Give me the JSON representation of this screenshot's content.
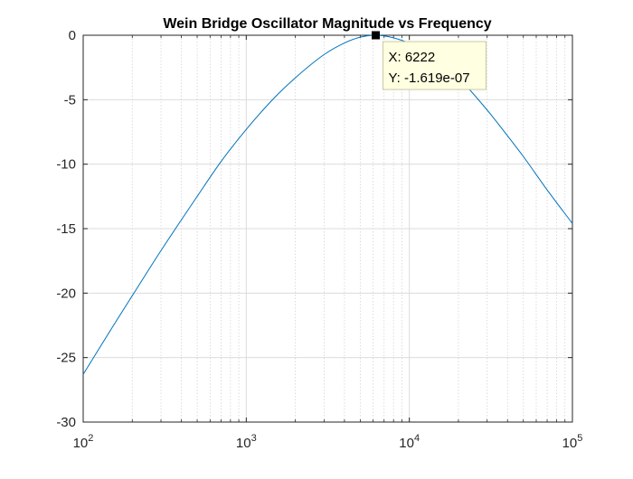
{
  "chart_data": {
    "type": "line",
    "title": "Wein Bridge Oscillator Magnitude vs Frequency",
    "xlabel": "",
    "ylabel": "",
    "xscale": "log",
    "xlim": [
      100,
      100000
    ],
    "ylim": [
      -30,
      0
    ],
    "grid": true,
    "minor_grid": true,
    "x_ticks": [
      {
        "value": 100,
        "base": "10",
        "exp": "2"
      },
      {
        "value": 1000,
        "base": "10",
        "exp": "3"
      },
      {
        "value": 10000,
        "base": "10",
        "exp": "4"
      },
      {
        "value": 100000,
        "base": "10",
        "exp": "5"
      }
    ],
    "y_ticks": [
      {
        "value": 0,
        "label": "0"
      },
      {
        "value": -5,
        "label": "-5"
      },
      {
        "value": -10,
        "label": "-10"
      },
      {
        "value": -15,
        "label": "-15"
      },
      {
        "value": -20,
        "label": "-20"
      },
      {
        "value": -25,
        "label": "-25"
      },
      {
        "value": -30,
        "label": "-30"
      }
    ],
    "series": [
      {
        "color": "#0072BD",
        "points": [
          [
            100,
            -26.3
          ],
          [
            150,
            -22.7
          ],
          [
            200,
            -20.2
          ],
          [
            300,
            -16.7
          ],
          [
            500,
            -12.5
          ],
          [
            700,
            -9.8
          ],
          [
            1000,
            -7.3
          ],
          [
            1500,
            -4.8
          ],
          [
            2000,
            -3.3
          ],
          [
            3000,
            -1.5
          ],
          [
            4000,
            -0.6
          ],
          [
            5000,
            -0.15
          ],
          [
            6222,
            0
          ],
          [
            7000,
            -0.05
          ],
          [
            8000,
            -0.2
          ],
          [
            10000,
            -0.6
          ],
          [
            12000,
            -1.0
          ],
          [
            15000,
            -1.9
          ],
          [
            20000,
            -3.3
          ],
          [
            30000,
            -5.8
          ],
          [
            40000,
            -7.8
          ],
          [
            50000,
            -9.4
          ],
          [
            70000,
            -12.0
          ],
          [
            100000,
            -14.6
          ]
        ]
      }
    ],
    "datatip": {
      "x": 6222,
      "y": 0,
      "x_text": "X: 6222",
      "y_text": "Y: -1.619e-07"
    }
  }
}
